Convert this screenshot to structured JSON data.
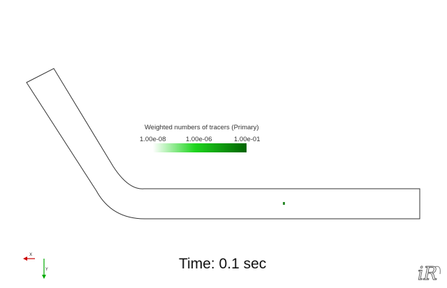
{
  "colorbar": {
    "title": "Weighted numbers of tracers (Primary)",
    "tick_min": "1.00e-08",
    "tick_mid": "1.00e-06",
    "tick_max": "1.00e-01",
    "color_low": "#ffffff",
    "color_mid": "#1ed51e",
    "color_high": "#006400"
  },
  "time": {
    "label": "Time: 0.1 sec"
  },
  "axes": {
    "x_label": "X",
    "y_label": "Y",
    "x_color": "#cc0000",
    "y_color": "#00aa00"
  },
  "logo": {
    "text": "iRIC",
    "icon": "iric-logo-icon"
  },
  "channel": {
    "outline_color": "#333333"
  },
  "tracer": {
    "color": "#2e8b2e"
  }
}
